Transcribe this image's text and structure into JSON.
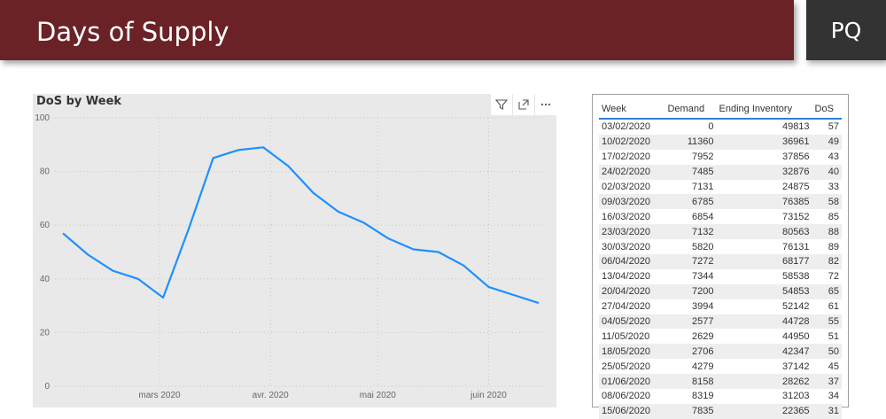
{
  "header": {
    "title": "Days of Supply",
    "badge": "PQ"
  },
  "chart": {
    "title": "DoS by Week",
    "tools": [
      "filter-icon",
      "focus-mode-icon",
      "more-options-icon"
    ]
  },
  "chart_data": {
    "type": "line",
    "title": "DoS by Week",
    "xlabel": "",
    "ylabel": "",
    "ylim": [
      0,
      100
    ],
    "yticks": [
      0,
      20,
      40,
      60,
      80,
      100
    ],
    "xticks": [
      {
        "label": "mars 2020",
        "date": "2020-03-01"
      },
      {
        "label": "avr. 2020",
        "date": "2020-04-01"
      },
      {
        "label": "mai 2020",
        "date": "2020-05-01"
      },
      {
        "label": "juin 2020",
        "date": "2020-06-01"
      }
    ],
    "x": [
      "2020-02-03",
      "2020-02-10",
      "2020-02-17",
      "2020-02-24",
      "2020-03-02",
      "2020-03-09",
      "2020-03-16",
      "2020-03-23",
      "2020-03-30",
      "2020-04-06",
      "2020-04-13",
      "2020-04-20",
      "2020-04-27",
      "2020-05-04",
      "2020-05-11",
      "2020-05-18",
      "2020-05-25",
      "2020-06-01",
      "2020-06-08",
      "2020-06-15"
    ],
    "series": [
      {
        "values": [
          57,
          49,
          43,
          40,
          33,
          58,
          85,
          88,
          89,
          82,
          72,
          65,
          61,
          55,
          51,
          50,
          45,
          37,
          34,
          31
        ],
        "color": "#1e90ff"
      }
    ],
    "grid": true
  },
  "table": {
    "columns": [
      "Week",
      "Demand",
      "Ending Inventory",
      "DoS"
    ],
    "rows": [
      [
        "03/02/2020",
        "0",
        "49813",
        "57"
      ],
      [
        "10/02/2020",
        "11360",
        "36961",
        "49"
      ],
      [
        "17/02/2020",
        "7952",
        "37856",
        "43"
      ],
      [
        "24/02/2020",
        "7485",
        "32876",
        "40"
      ],
      [
        "02/03/2020",
        "7131",
        "24875",
        "33"
      ],
      [
        "09/03/2020",
        "6785",
        "76385",
        "58"
      ],
      [
        "16/03/2020",
        "6854",
        "73152",
        "85"
      ],
      [
        "23/03/2020",
        "7132",
        "80563",
        "88"
      ],
      [
        "30/03/2020",
        "5820",
        "76131",
        "89"
      ],
      [
        "06/04/2020",
        "7272",
        "68177",
        "82"
      ],
      [
        "13/04/2020",
        "7344",
        "58538",
        "72"
      ],
      [
        "20/04/2020",
        "7200",
        "54853",
        "65"
      ],
      [
        "27/04/2020",
        "3994",
        "52142",
        "61"
      ],
      [
        "04/05/2020",
        "2577",
        "44728",
        "55"
      ],
      [
        "11/05/2020",
        "2629",
        "44950",
        "51"
      ],
      [
        "18/05/2020",
        "2706",
        "42347",
        "50"
      ],
      [
        "25/05/2020",
        "4279",
        "37142",
        "45"
      ],
      [
        "01/06/2020",
        "8158",
        "28262",
        "37"
      ],
      [
        "08/06/2020",
        "8319",
        "31203",
        "34"
      ],
      [
        "15/06/2020",
        "7835",
        "22365",
        "31"
      ]
    ]
  }
}
